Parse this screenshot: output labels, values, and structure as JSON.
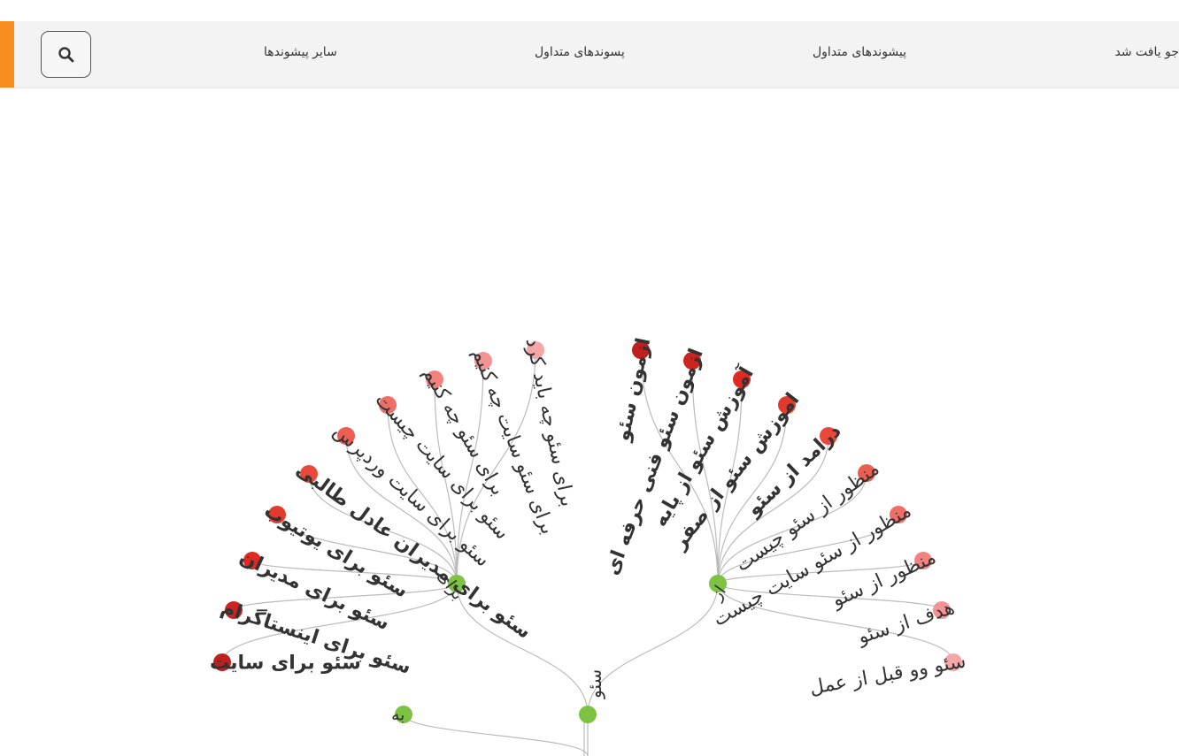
{
  "nav": {
    "items": [
      {
        "label": "جو یافت شد"
      },
      {
        "label": "پیشوندهای متداول"
      },
      {
        "label": "پسوندهای متداول"
      },
      {
        "label": "سایر پیشوندها"
      }
    ],
    "accent_color": "#f78d1e"
  },
  "icons": {
    "search": "search-icon"
  },
  "tree": {
    "root": {
      "label": "سئو"
    },
    "branches": [
      {
        "label": "برای",
        "children": [
          {
            "label": "سئو برای سایت",
            "rank": 1
          },
          {
            "label": "سئو برای اینستاگرام",
            "rank": 2
          },
          {
            "label": "سئو برای مدیران",
            "rank": 3
          },
          {
            "label": "سئو برای یوتیوب",
            "rank": 4
          },
          {
            "label": "سئو برای مدیران عادل طالبی",
            "rank": 5
          },
          {
            "label": "سئو برای سایت وردپرس",
            "rank": 6
          },
          {
            "label": "سئو برای سایت چیست",
            "rank": 7
          },
          {
            "label": "برای سئو چه کنیم",
            "rank": 8
          },
          {
            "label": "برای سئو سایت چه کنیم",
            "rank": 9
          },
          {
            "label": "برای سئو چه باید کرد",
            "rank": 10
          }
        ]
      },
      {
        "label": "از",
        "children": [
          {
            "label": "ازمون سئو",
            "rank": 1
          },
          {
            "label": "ازمون سئو فنی حرفه ای",
            "rank": 2
          },
          {
            "label": "آموزش سئو از پایه",
            "rank": 3
          },
          {
            "label": "اموزش سئو از صفر",
            "rank": 4
          },
          {
            "label": "درامد از سئو",
            "rank": 5
          },
          {
            "label": "منظور از سئو چیست",
            "rank": 6
          },
          {
            "label": "منظور از سئو سایت چیست",
            "rank": 7
          },
          {
            "label": "منظور از سئو",
            "rank": 8
          },
          {
            "label": "هدف از سئو",
            "rank": 9
          },
          {
            "label": "سئو وو قبل از عمل",
            "rank": 10
          }
        ]
      },
      {
        "label": "به",
        "children": []
      }
    ],
    "colors": {
      "branch_node": "#7dc242",
      "link": "#bbbbbb",
      "leaf_scale": [
        "#c0201d",
        "#cc241f",
        "#dd2a22",
        "#e23a2c",
        "#e8493a",
        "#ed5e52",
        "#ef6f66",
        "#f28280",
        "#f39393",
        "#f4a7a7"
      ]
    }
  }
}
